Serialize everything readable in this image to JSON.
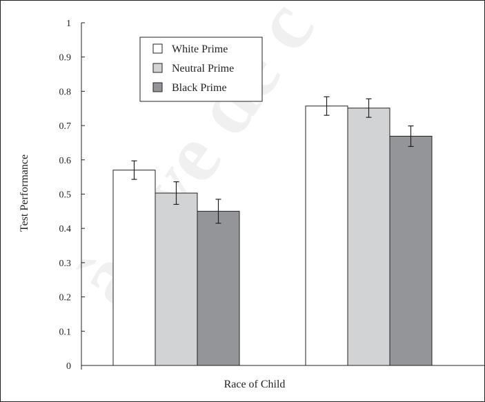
{
  "chart_data": {
    "type": "bar",
    "title": "",
    "xlabel": "Race of Child",
    "ylabel": "Test Performance",
    "ylim": [
      0,
      1
    ],
    "yticks": [
      "0",
      "0.1",
      "0.2",
      "0.3",
      "0.4",
      "0.5",
      "0.6",
      "0.7",
      "0.8",
      "0.9",
      "1"
    ],
    "categories": [
      "",
      ""
    ],
    "legend_position": "top-left",
    "grid": false,
    "series": [
      {
        "name": "White Prime",
        "color": "#ffffff",
        "values": [
          0.57,
          0.757
        ],
        "errors": [
          0.027,
          0.027
        ]
      },
      {
        "name": "Neutral Prime",
        "color": "#d2d3d5",
        "values": [
          0.503,
          0.751
        ],
        "errors": [
          0.033,
          0.027
        ]
      },
      {
        "name": "Black Prime",
        "color": "#939598",
        "values": [
          0.45,
          0.669
        ],
        "errors": [
          0.035,
          0.03
        ]
      }
    ]
  },
  "watermark": {
    "text": "à uve de c",
    "color": "#d9d9d9"
  }
}
